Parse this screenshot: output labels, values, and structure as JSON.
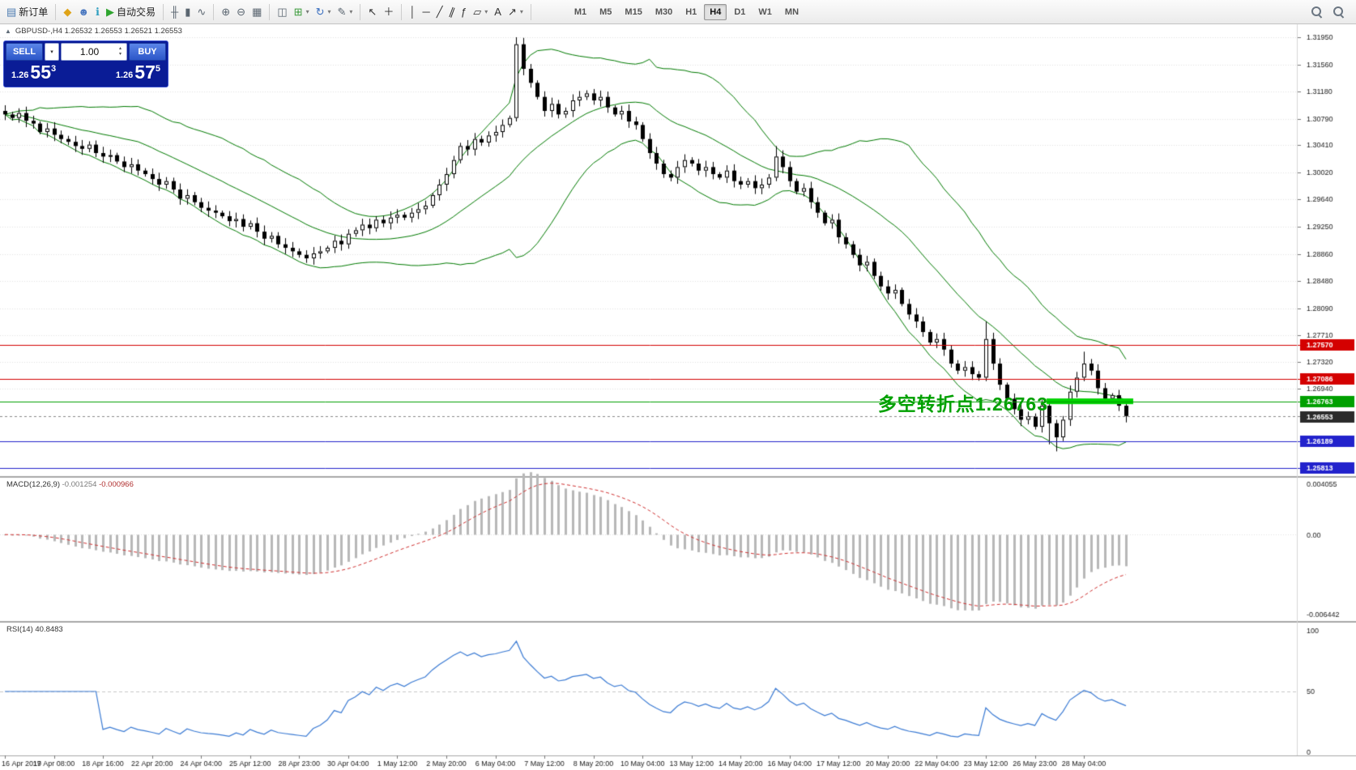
{
  "window": {
    "background": "#f0f0f0",
    "chart_background": "#ffffff"
  },
  "toolbar": {
    "chevron_glyph": "▾",
    "groups": [
      {
        "items": [
          {
            "name": "new-order-button",
            "glyph": "▤",
            "color": "#4a7ab0",
            "label": "新订单"
          }
        ]
      },
      {
        "items": [
          {
            "name": "metaquotes-icon",
            "glyph": "◆",
            "color": "#dfa317"
          },
          {
            "name": "community-icon",
            "glyph": "☻",
            "color": "#4a78c0"
          },
          {
            "name": "help-icon",
            "glyph": "ℹ",
            "color": "#2f9fc0"
          },
          {
            "name": "auto-trading-button",
            "glyph": "▶",
            "color": "#2fa52f",
            "label": "自动交易"
          }
        ]
      },
      {
        "items": [
          {
            "name": "bar-chart-type-icon",
            "glyph": "╫"
          },
          {
            "name": "candlestick-chart-type-icon",
            "glyph": "▮"
          },
          {
            "name": "line-chart-type-icon",
            "glyph": "∿"
          }
        ]
      },
      {
        "items": [
          {
            "name": "zoom-in-icon",
            "glyph": "⊕"
          },
          {
            "name": "zoom-out-icon",
            "glyph": "⊖"
          },
          {
            "name": "tile-windows-icon",
            "glyph": "▦"
          }
        ]
      },
      {
        "items": [
          {
            "name": "indicators-window-icon",
            "glyph": "◫"
          },
          {
            "name": "add-indicator-icon",
            "glyph": "⊞",
            "color": "#3a9a3a",
            "dropdown": true
          },
          {
            "name": "navigator-icon",
            "glyph": "↻",
            "color": "#3a6fc0",
            "dropdown": true
          },
          {
            "name": "chart-settings-icon",
            "glyph": "✎",
            "dropdown": true
          }
        ]
      },
      {
        "items": [
          {
            "name": "cursor-tool-icon",
            "glyph": "↖",
            "color": "#333333"
          },
          {
            "name": "crosshair-tool-icon",
            "glyph": "＋",
            "color": "#333333"
          }
        ]
      },
      {
        "items": [
          {
            "name": "vertical-line-tool-icon",
            "glyph": "│",
            "color": "#333333"
          },
          {
            "name": "horizontal-line-tool-icon",
            "glyph": "─",
            "color": "#333333"
          },
          {
            "name": "trendline-tool-icon",
            "glyph": "╱",
            "color": "#333333"
          },
          {
            "name": "channel-tool-icon",
            "glyph": "∥",
            "color": "#333333",
            "rot": 20
          },
          {
            "name": "fibonacci-tool-icon",
            "glyph": "ƒ",
            "color": "#333333"
          },
          {
            "name": "shapes-tool-icon",
            "glyph": "▱",
            "color": "#333333",
            "dropdown": true
          },
          {
            "name": "text-tool-icon",
            "glyph": "A",
            "color": "#333333"
          },
          {
            "name": "arrows-tool-icon",
            "glyph": "↗",
            "color": "#333333",
            "dropdown": true
          }
        ]
      }
    ],
    "timeframes": [
      "M1",
      "M5",
      "M15",
      "M30",
      "H1",
      "H4",
      "D1",
      "W1",
      "MN"
    ],
    "active_timeframe": "H4",
    "right_icons": [
      {
        "name": "search-icon"
      },
      {
        "name": "symbol-search-icon"
      }
    ]
  },
  "symbol_bar": {
    "collapse_icon": "▲",
    "text": "GBPUSD-,H4  1.26532 1.26553 1.26521 1.26553"
  },
  "trade_panel": {
    "sell_label": "SELL",
    "buy_label": "BUY",
    "lot": "1.00",
    "dropdown_icon": "▾",
    "spin_up_icon": "▴",
    "spin_down_icon": "▾",
    "sell_price_small": "1.26",
    "sell_price_big": "55",
    "sell_price_sup": "3",
    "buy_price_small": "1.26",
    "buy_price_big": "57",
    "buy_price_sup": "5"
  },
  "annotation": {
    "text": "多空转折点1.26763",
    "color": "#00a000"
  },
  "chart_data": {
    "type": "candlestick",
    "symbol": "GBPUSD-",
    "period": "H4",
    "ohlc_label": {
      "open": "1.26532",
      "high": "1.26553",
      "low": "1.26521",
      "close": "1.26553"
    },
    "price_axis": {
      "ticks": [
        "1.31950",
        "1.31560",
        "1.31180",
        "1.30790",
        "1.30410",
        "1.30020",
        "1.29640",
        "1.29250",
        "1.28860",
        "1.28480",
        "1.28090",
        "1.27710",
        "1.27320",
        "1.26940"
      ]
    },
    "first_open": 1.309,
    "closes": [
      1.3085,
      1.308,
      1.3087,
      1.3076,
      1.3072,
      1.306,
      1.3065,
      1.3056,
      1.305,
      1.3046,
      1.304,
      1.3036,
      1.3042,
      1.303,
      1.3025,
      1.3027,
      1.3018,
      1.301,
      1.3014,
      1.3005,
      1.3,
      1.2993,
      1.2985,
      1.299,
      1.2978,
      1.2965,
      1.297,
      1.296,
      1.2952,
      1.2948,
      1.2945,
      1.294,
      1.2933,
      1.2936,
      1.2925,
      1.293,
      1.2918,
      1.2908,
      1.2912,
      1.29,
      1.2895,
      1.289,
      1.2885,
      1.288,
      1.2887,
      1.289,
      1.2895,
      1.2905,
      1.29,
      1.2915,
      1.292,
      1.2928,
      1.2923,
      1.2935,
      1.293,
      1.2938,
      1.2942,
      1.2938,
      1.2945,
      1.295,
      1.2955,
      1.297,
      1.2985,
      1.3,
      1.302,
      1.304,
      1.3035,
      1.305,
      1.3045,
      1.3055,
      1.306,
      1.307,
      1.308,
      1.3185,
      1.315,
      1.313,
      1.311,
      1.309,
      1.31,
      1.3085,
      1.309,
      1.3105,
      1.311,
      1.3115,
      1.3105,
      1.311,
      1.3095,
      1.3085,
      1.309,
      1.3075,
      1.307,
      1.305,
      1.303,
      1.3015,
      1.3,
      1.2995,
      1.301,
      1.302,
      1.3015,
      1.3005,
      1.301,
      1.3,
      1.2995,
      1.3005,
      1.299,
      1.2985,
      1.299,
      1.298,
      1.2985,
      1.2995,
      1.3025,
      1.301,
      1.299,
      1.2975,
      1.298,
      1.296,
      1.2945,
      1.293,
      1.2935,
      1.291,
      1.29,
      1.2885,
      1.287,
      1.2875,
      1.2855,
      1.284,
      1.283,
      1.2835,
      1.2815,
      1.28,
      1.279,
      1.2775,
      1.276,
      1.2765,
      1.275,
      1.273,
      1.272,
      1.2725,
      1.2715,
      1.271,
      1.2765,
      1.273,
      1.27,
      1.268,
      1.2665,
      1.265,
      1.2655,
      1.264,
      1.267,
      1.2645,
      1.2625,
      1.265,
      1.269,
      1.271,
      1.273,
      1.272,
      1.2695,
      1.268,
      1.2685,
      1.267,
      1.26553
    ],
    "special_candles": {
      "73": [
        1.308,
        1.3195,
        1.3075,
        1.3185
      ],
      "110": [
        1.2995,
        1.304,
        1.299,
        1.3025
      ],
      "140": [
        1.271,
        1.279,
        1.2705,
        1.2765
      ],
      "149": [
        1.267,
        1.2675,
        1.2615,
        1.2645
      ],
      "150": [
        1.2645,
        1.265,
        1.2605,
        1.2625
      ],
      "154": [
        1.271,
        1.2747,
        1.2705,
        1.273
      ]
    },
    "indicators": {
      "bollinger": {
        "period": 20,
        "deviation": 2,
        "color": "#007a00"
      },
      "macd": {
        "label": "MACD(12,26,9)",
        "value_main": "-0.001254",
        "value_signal": "-0.000966",
        "fast": 12,
        "slow": 26,
        "signal": 9,
        "histogram_color": "#b8b8b8",
        "signal_color": "#d03030",
        "axis": [
          "0.004055",
          "0.00",
          "-0.006442"
        ]
      },
      "rsi": {
        "label": "RSI(14)",
        "value": "40.8483",
        "period": 14,
        "line_color": "#3b7bd4",
        "axis": [
          "100",
          "50",
          "0"
        ]
      }
    },
    "levels": [
      {
        "price": 1.2757,
        "label": "1.27570",
        "color": "#d40000"
      },
      {
        "price": 1.27086,
        "label": "1.27086",
        "color": "#d40000"
      },
      {
        "price": 1.26763,
        "label": "1.26763",
        "color": "#00a000"
      },
      {
        "price": 1.26189,
        "label": "1.26189",
        "color": "#2222cc"
      },
      {
        "price": 1.25813,
        "label": "1.25813",
        "color": "#2222cc"
      }
    ],
    "current_price": {
      "value": 1.26553,
      "label": "1.26553",
      "tag_color": "#2b2b2b"
    },
    "highlight_segment": {
      "price": 1.26763,
      "color": "#00d300",
      "from_candle": 149,
      "to_candle": 160,
      "thickness": 7
    },
    "time_axis": {
      "labels": [
        "16 Apr 2019",
        "17 Apr 08:00",
        "18 Apr 16:00",
        "22 Apr 20:00",
        "24 Apr 04:00",
        "25 Apr 12:00",
        "28 Apr 23:00",
        "30 Apr 04:00",
        "1 May 12:00",
        "2 May 20:00",
        "6 May 04:00",
        "7 May 12:00",
        "8 May 20:00",
        "10 May 04:00",
        "13 May 12:00",
        "14 May 20:00",
        "16 May 04:00",
        "17 May 12:00",
        "20 May 20:00",
        "22 May 04:00",
        "23 May 12:00",
        "26 May 23:00",
        "28 May 04:00"
      ]
    }
  }
}
